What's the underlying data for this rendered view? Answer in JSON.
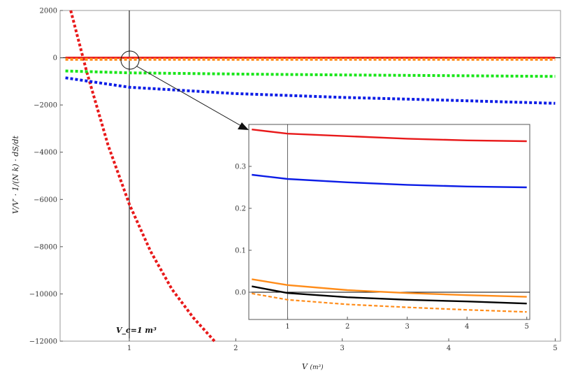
{
  "chart_data": [
    {
      "type": "line",
      "xlim": [
        0.35,
        5.05
      ],
      "ylim": [
        -12000,
        2000
      ],
      "xticks": [
        1,
        2,
        3,
        4,
        5
      ],
      "yticks": [
        2000,
        0,
        -2000,
        -4000,
        -6000,
        -8000,
        -10000,
        -12000
      ],
      "ytick_labels": [
        "2000",
        "0",
        "−2000",
        "−4000",
        "−6000",
        "−8000",
        "−10000",
        "−12000"
      ],
      "xlabel_main": "V",
      "xlabel_unit": "(m³)",
      "ylabel": "V/V′ · 1/(N k) · dS/dt",
      "annotation": "V_c=1 m³",
      "vline_x": 1,
      "series": [
        {
          "color": "#e8191a",
          "style": "dotted",
          "x": [
            0.45,
            0.6,
            0.8,
            1.0,
            1.2,
            1.4,
            1.6,
            1.8
          ],
          "y": [
            2000,
            -600,
            -3700,
            -6200,
            -8200,
            -9800,
            -11000,
            -12000
          ]
        },
        {
          "color": "#0c1de6",
          "style": "dotted",
          "x": [
            0.4,
            1,
            2,
            3,
            4,
            5
          ],
          "y": [
            -850,
            -1250,
            -1520,
            -1680,
            -1800,
            -1930
          ]
        },
        {
          "color": "#19e619",
          "style": "dotted",
          "x": [
            0.4,
            1,
            2,
            3,
            4,
            5
          ],
          "y": [
            -560,
            -640,
            -690,
            -730,
            -760,
            -790
          ]
        },
        {
          "color": "#e8191a",
          "style": "solid",
          "x": [
            0.4,
            5
          ],
          "y": [
            0,
            0
          ]
        },
        {
          "color": "#ff8c19",
          "style": "dotted",
          "x": [
            0.4,
            5
          ],
          "y": [
            -70,
            -70
          ]
        }
      ]
    },
    {
      "type": "line",
      "inset": true,
      "xlim": [
        0.35,
        5.05
      ],
      "ylim": [
        -0.065,
        0.4
      ],
      "xticks": [
        1,
        2,
        3,
        4,
        5
      ],
      "yticks": [
        0.3,
        0.2,
        0.1,
        0.0
      ],
      "ytick_labels": [
        "0.3",
        "0.2",
        "0.1",
        "0.0"
      ],
      "vline_x": 1,
      "series": [
        {
          "color": "#e8191a",
          "style": "solid",
          "x": [
            0.4,
            1,
            2,
            3,
            4,
            5
          ],
          "y": [
            0.388,
            0.378,
            0.372,
            0.366,
            0.362,
            0.36
          ]
        },
        {
          "color": "#0c1de6",
          "style": "solid",
          "x": [
            0.4,
            1,
            2,
            3,
            4,
            5
          ],
          "y": [
            0.28,
            0.27,
            0.262,
            0.256,
            0.252,
            0.25
          ]
        },
        {
          "color": "#ff8c19",
          "style": "solid",
          "x": [
            0.4,
            1,
            2,
            3,
            4,
            5
          ],
          "y": [
            0.031,
            0.017,
            0.005,
            -0.002,
            -0.007,
            -0.011
          ]
        },
        {
          "color": "#000000",
          "style": "solid",
          "x": [
            0.4,
            1,
            2,
            3,
            4,
            5
          ],
          "y": [
            0.014,
            -0.002,
            -0.012,
            -0.018,
            -0.022,
            -0.027
          ]
        },
        {
          "color": "#ff8c19",
          "style": "dashed",
          "x": [
            0.4,
            1,
            2,
            3,
            4,
            5
          ],
          "y": [
            -0.003,
            -0.018,
            -0.029,
            -0.036,
            -0.042,
            -0.047
          ]
        }
      ]
    }
  ]
}
